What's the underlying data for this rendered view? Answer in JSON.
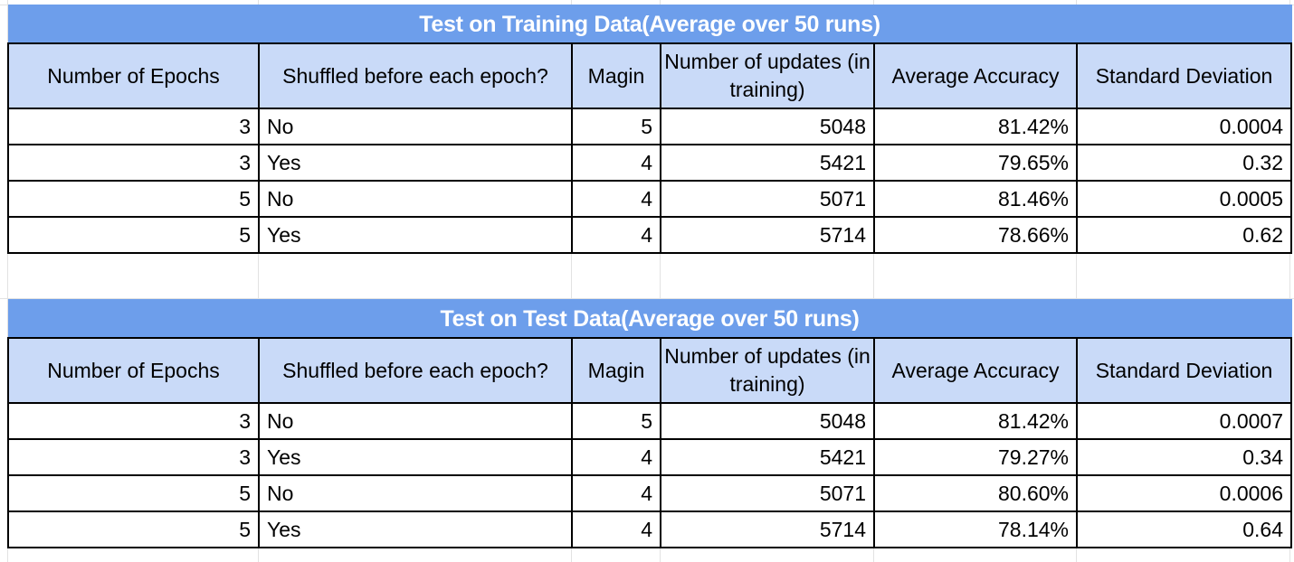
{
  "tables": [
    {
      "title": "Test on Training Data(Average over 50 runs)",
      "headers": {
        "epochs": "Number of Epochs",
        "shuffled": "Shuffled before each epoch?",
        "margin": "Magin",
        "updates": "Number of updates (in training)",
        "accuracy": "Average Accuracy",
        "stddev": "Standard Deviation"
      },
      "rows": [
        {
          "epochs": "3",
          "shuffled": "No",
          "margin": "5",
          "updates": "5048",
          "accuracy": "81.42%",
          "stddev": "0.0004"
        },
        {
          "epochs": "3",
          "shuffled": "Yes",
          "margin": "4",
          "updates": "5421",
          "accuracy": "79.65%",
          "stddev": "0.32"
        },
        {
          "epochs": "5",
          "shuffled": "No",
          "margin": "4",
          "updates": "5071",
          "accuracy": "81.46%",
          "stddev": "0.0005"
        },
        {
          "epochs": "5",
          "shuffled": "Yes",
          "margin": "4",
          "updates": "5714",
          "accuracy": "78.66%",
          "stddev": "0.62"
        }
      ]
    },
    {
      "title": "Test on Test Data(Average over 50 runs)",
      "headers": {
        "epochs": "Number of Epochs",
        "shuffled": "Shuffled before each epoch?",
        "margin": "Magin",
        "updates": "Number of updates (in training)",
        "accuracy": "Average Accuracy",
        "stddev": "Standard Deviation"
      },
      "rows": [
        {
          "epochs": "3",
          "shuffled": "No",
          "margin": "5",
          "updates": "5048",
          "accuracy": "81.42%",
          "stddev": "0.0007"
        },
        {
          "epochs": "3",
          "shuffled": "Yes",
          "margin": "4",
          "updates": "5421",
          "accuracy": "79.27%",
          "stddev": "0.34"
        },
        {
          "epochs": "5",
          "shuffled": "No",
          "margin": "4",
          "updates": "5071",
          "accuracy": "80.60%",
          "stddev": "0.0006"
        },
        {
          "epochs": "5",
          "shuffled": "Yes",
          "margin": "4",
          "updates": "5714",
          "accuracy": "78.14%",
          "stddev": "0.64"
        }
      ]
    }
  ],
  "colors": {
    "title_bg": "#6d9eeb",
    "header_bg": "#c9daf8",
    "grid_line": "#e2e2e2"
  }
}
